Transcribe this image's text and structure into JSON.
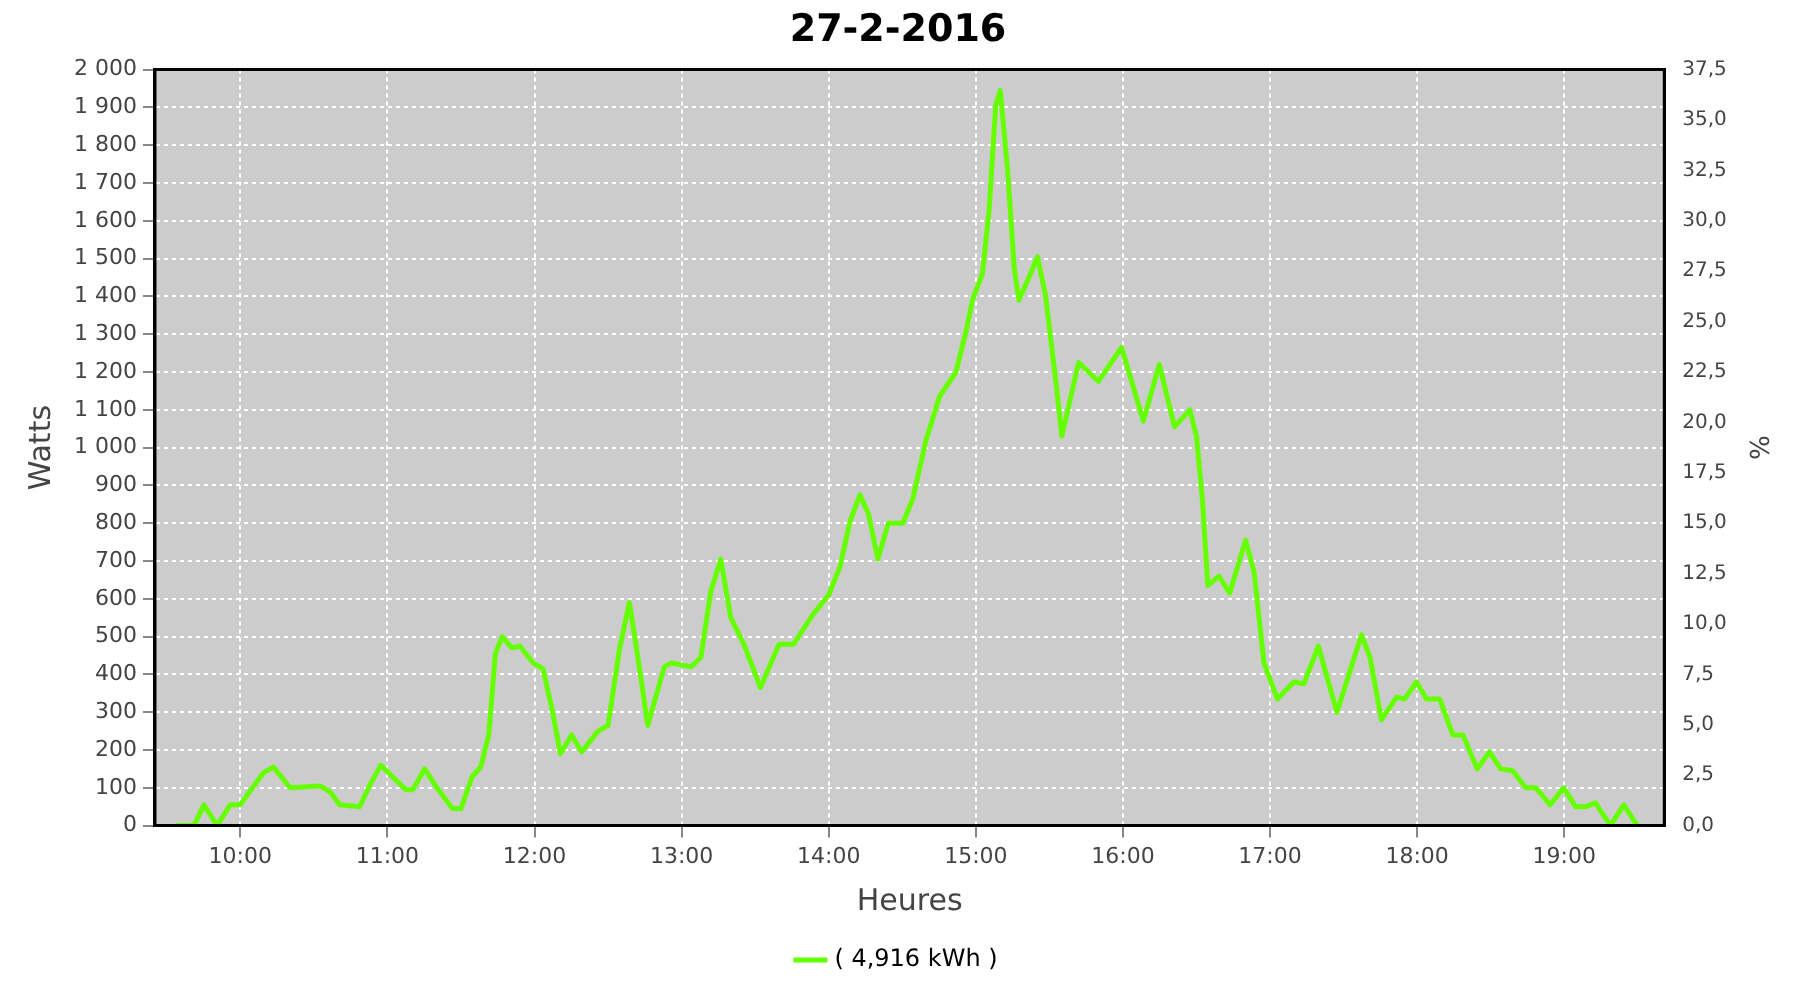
{
  "chart_data": {
    "type": "line",
    "title": "27-2-2016",
    "xlabel": "Heures",
    "ylabel": "Watts",
    "y2label": "%",
    "xlim": [
      9.42,
      19.68
    ],
    "xticks": [
      {
        "value": 10,
        "label": "10:00"
      },
      {
        "value": 11,
        "label": "11:00"
      },
      {
        "value": 12,
        "label": "12:00"
      },
      {
        "value": 13,
        "label": "13:00"
      },
      {
        "value": 14,
        "label": "14:00"
      },
      {
        "value": 15,
        "label": "15:00"
      },
      {
        "value": 16,
        "label": "16:00"
      },
      {
        "value": 17,
        "label": "17:00"
      },
      {
        "value": 18,
        "label": "18:00"
      },
      {
        "value": 19,
        "label": "19:00"
      }
    ],
    "ylim": [
      0,
      2000
    ],
    "yticks": [
      0,
      100,
      200,
      300,
      400,
      500,
      600,
      700,
      800,
      900,
      {
        "value": 1000,
        "label": "1 000"
      },
      {
        "value": 1100,
        "label": "1 100"
      },
      {
        "value": 1200,
        "label": "1 200"
      },
      {
        "value": 1300,
        "label": "1 300"
      },
      {
        "value": 1400,
        "label": "1 400"
      },
      {
        "value": 1500,
        "label": "1 500"
      },
      {
        "value": 1600,
        "label": "1 600"
      },
      {
        "value": 1700,
        "label": "1 700"
      },
      {
        "value": 1800,
        "label": "1 800"
      },
      {
        "value": 1900,
        "label": "1 900"
      },
      {
        "value": 2000,
        "label": "2 000"
      }
    ],
    "y2lim": [
      0,
      37.5
    ],
    "y2ticks": [
      {
        "value": 0,
        "label": "0,0"
      },
      {
        "value": 2.5,
        "label": "2,5"
      },
      {
        "value": 5,
        "label": "5,0"
      },
      {
        "value": 7.5,
        "label": "7,5"
      },
      {
        "value": 10,
        "label": "10,0"
      },
      {
        "value": 12.5,
        "label": "12,5"
      },
      {
        "value": 15,
        "label": "15,0"
      },
      {
        "value": 17.5,
        "label": "17,5"
      },
      {
        "value": 20,
        "label": "20,0"
      },
      {
        "value": 22.5,
        "label": "22,5"
      },
      {
        "value": 25,
        "label": "25,0"
      },
      {
        "value": 27.5,
        "label": "27,5"
      },
      {
        "value": 30,
        "label": "30,0"
      },
      {
        "value": 32.5,
        "label": "32,5"
      },
      {
        "value": 35,
        "label": "35,0"
      },
      {
        "value": 37.5,
        "label": "37,5"
      }
    ],
    "grid": true,
    "legend": "bottom",
    "marker": "none",
    "line_style": "solid",
    "series": [
      {
        "name": "( 4,916 kWh )",
        "color": "#66ff00",
        "x": [
          9.572,
          9.685,
          9.753,
          9.842,
          9.932,
          10.0,
          10.158,
          10.226,
          10.338,
          10.541,
          10.608,
          10.676,
          10.811,
          10.878,
          10.955,
          11.058,
          11.126,
          11.172,
          11.253,
          11.328,
          11.442,
          11.5,
          11.577,
          11.635,
          11.689,
          11.734,
          11.78,
          11.847,
          11.901,
          11.991,
          12.058,
          12.118,
          12.176,
          12.253,
          12.32,
          12.432,
          12.5,
          12.577,
          12.645,
          12.703,
          12.77,
          12.882,
          12.928,
          13.064,
          13.131,
          13.199,
          13.266,
          13.334,
          13.423,
          13.536,
          13.662,
          13.761,
          13.896,
          14.0,
          14.077,
          14.145,
          14.212,
          14.27,
          14.334,
          14.405,
          14.504,
          14.572,
          14.662,
          14.753,
          14.865,
          14.932,
          14.977,
          15.045,
          15.091,
          15.135,
          15.166,
          15.216,
          15.261,
          15.293,
          15.361,
          15.419,
          15.473,
          15.541,
          15.585,
          15.699,
          15.834,
          15.991,
          16.139,
          16.247,
          16.351,
          16.455,
          16.5,
          16.541,
          16.577,
          16.653,
          16.726,
          16.834,
          16.892,
          16.959,
          17.05,
          17.162,
          17.23,
          17.328,
          17.455,
          17.622,
          17.68,
          17.757,
          17.861,
          17.915,
          17.996,
          18.064,
          18.153,
          18.243,
          18.311,
          18.409,
          18.491,
          18.568,
          18.649,
          18.739,
          18.807,
          18.905,
          18.996,
          19.077,
          19.145,
          19.212,
          19.314,
          19.405,
          19.496
        ],
        "values": [
          0,
          0,
          55,
          0,
          55,
          55,
          140,
          155,
          100,
          105,
          90,
          55,
          50,
          105,
          160,
          120,
          95,
          95,
          150,
          105,
          45,
          45,
          130,
          155,
          240,
          455,
          500,
          470,
          475,
          430,
          415,
          310,
          190,
          240,
          195,
          250,
          265,
          465,
          590,
          445,
          265,
          420,
          430,
          420,
          445,
          620,
          705,
          550,
          480,
          365,
          480,
          480,
          560,
          610,
          685,
          805,
          875,
          825,
          705,
          800,
          800,
          865,
          1020,
          1135,
          1200,
          1305,
          1390,
          1460,
          1630,
          1905,
          1945,
          1735,
          1475,
          1390,
          1450,
          1505,
          1405,
          1185,
          1030,
          1225,
          1175,
          1265,
          1070,
          1220,
          1055,
          1100,
          1030,
          860,
          635,
          660,
          615,
          755,
          670,
          430,
          335,
          380,
          375,
          475,
          300,
          505,
          445,
          280,
          340,
          335,
          380,
          335,
          335,
          240,
          240,
          150,
          195,
          150,
          145,
          100,
          100,
          55,
          100,
          50,
          50,
          60,
          0,
          55,
          0
        ]
      }
    ]
  }
}
